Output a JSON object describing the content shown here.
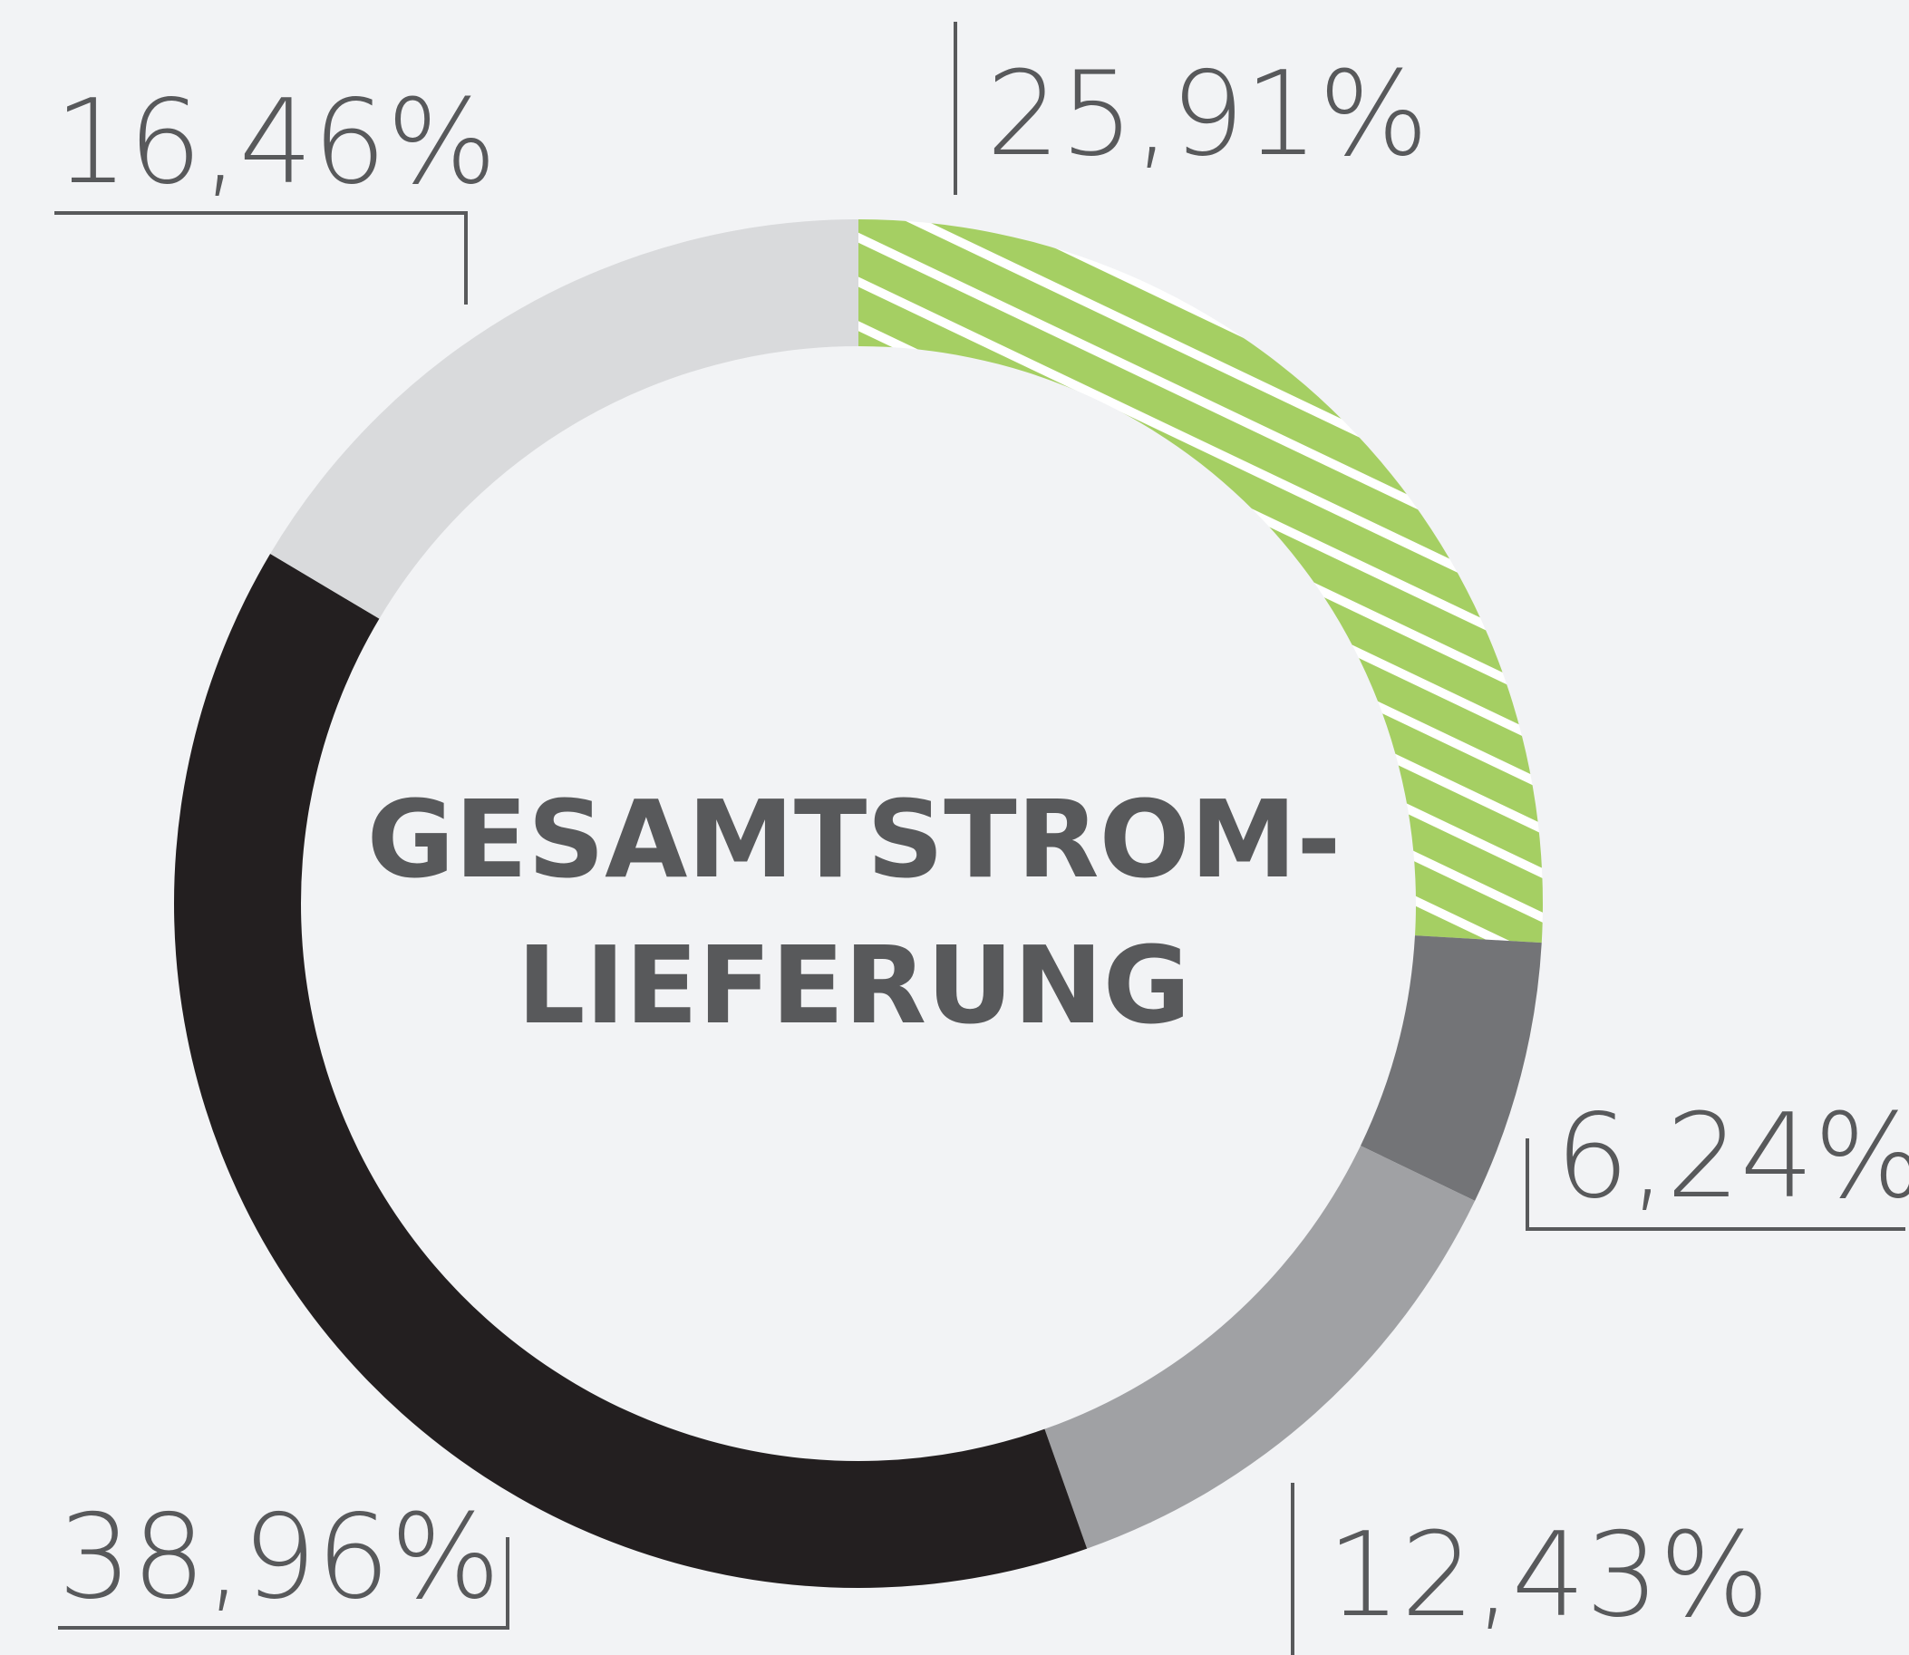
{
  "chart_data": {
    "type": "donut",
    "title_lines": [
      "GESAMTSTROM-",
      "LIEFERUNG"
    ],
    "values": [
      25.91,
      6.24,
      12.43,
      38.96,
      16.46
    ],
    "value_labels": [
      "25,91%",
      "6,24%",
      "12,43%",
      "38,96%",
      "16,46%"
    ],
    "colors": [
      "#a5cf63",
      "#737477",
      "#a0a1a4",
      "#231f20",
      "#d9dadc"
    ],
    "hatched": [
      true,
      false,
      false,
      false,
      false
    ]
  }
}
